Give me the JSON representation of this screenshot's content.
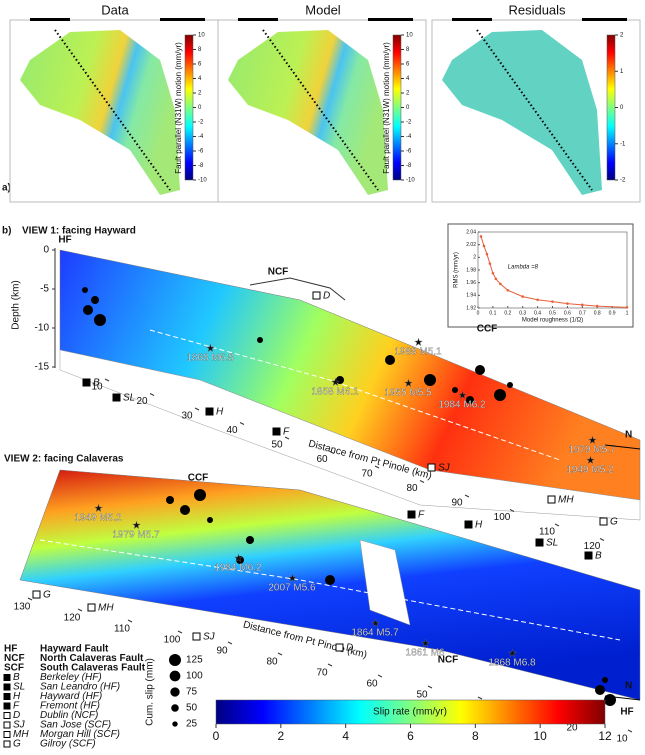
{
  "panel_a": {
    "label": "a)",
    "titles": [
      "Data",
      "Model",
      "Residuals"
    ],
    "colorbar_label": "Fault parallel (N31W) motion (mm/yr)",
    "colorbar_ticks": [
      10,
      8,
      6,
      4,
      2,
      0,
      -2,
      -4,
      -6,
      -8,
      -10
    ],
    "residual_ticks": [
      2,
      1,
      0,
      -1,
      -2
    ]
  },
  "panel_b": {
    "label": "b)",
    "view1": {
      "title": "VIEW 1: facing Hayward",
      "faults": [
        "HF",
        "NCF",
        "CCF"
      ],
      "depth_label": "Depth (km)",
      "depth_ticks": [
        0,
        -5,
        -10,
        -15
      ],
      "distance_ticks": [
        10,
        20,
        30,
        40,
        50,
        60,
        70,
        80,
        90,
        100,
        110,
        120
      ],
      "distance_label": "Distance from Pt Pinole (km)",
      "sites": [
        "B",
        "SL",
        "H",
        "F",
        "D",
        "SJ",
        "MH",
        "G"
      ],
      "earthquakes": [
        "1868 M6.8",
        "1858 M6.1",
        "1988 M5.1",
        "1955 M5.5",
        "1984 M6.2",
        "1979 M5.7",
        "1949 M5.2"
      ],
      "north": "N"
    },
    "view2": {
      "title": "VIEW 2: facing Calaveras",
      "faults": [
        "CCF",
        "NCF",
        "HF"
      ],
      "distance_ticks": [
        130,
        120,
        110,
        100,
        90,
        80,
        70,
        60,
        50,
        40,
        30,
        20,
        10
      ],
      "distance_label": "Distance from Pt Pinole (km)",
      "sites": [
        "F",
        "H",
        "SL",
        "B",
        "G",
        "MH",
        "SJ",
        "D"
      ],
      "earthquakes": [
        "1949 M5.2",
        "1979 M5.7",
        "1984 M6.2",
        "2007 M5.6",
        "1864 M5.7",
        "1861 M6",
        "1868 M6.8"
      ],
      "north": "N"
    },
    "legend": [
      {
        "abbr": "HF",
        "name": "Hayward Fault"
      },
      {
        "abbr": "NCF",
        "name": "North Calaveras Fault"
      },
      {
        "abbr": "SCF",
        "name": "South Calaveras Fault"
      },
      {
        "abbr": "B",
        "name": "Berkeley (HF)"
      },
      {
        "abbr": "SL",
        "name": "San Leandro (HF)"
      },
      {
        "abbr": "H",
        "name": "Hayward (HF)"
      },
      {
        "abbr": "F",
        "name": "Fremont (HF)"
      },
      {
        "abbr": "D",
        "name": "Dublin (NCF)"
      },
      {
        "abbr": "SJ",
        "name": "San Jose (SCF)"
      },
      {
        "abbr": "MH",
        "name": "Morgan Hill (SCF)"
      },
      {
        "abbr": "G",
        "name": "Gilroy (SCF)"
      }
    ],
    "slip_legend": {
      "title": "Cum. slip (mm)",
      "sizes": [
        125,
        100,
        75,
        50,
        25
      ]
    },
    "slip_colorbar": {
      "label": "Slip rate (mm/yr)",
      "ticks": [
        0,
        2,
        4,
        6,
        8,
        10,
        12
      ]
    }
  },
  "chart_data": {
    "type": "line",
    "x_label": "Model roughness (1/Ω)",
    "y_label": "RMS (mm/yr)",
    "annotation": "Lambda =8",
    "color": "#e8603c",
    "x": [
      0.02,
      0.04,
      0.06,
      0.08,
      0.1,
      0.12,
      0.15,
      0.2,
      0.3,
      0.4,
      0.5,
      0.6,
      0.7,
      0.8,
      1
    ],
    "values": [
      2.033,
      2.018,
      2.005,
      1.99,
      1.975,
      1.966,
      1.958,
      1.948,
      1.938,
      1.933,
      1.93,
      1.927,
      1.925,
      1.923,
      1.921
    ],
    "xlim": [
      0,
      1
    ],
    "ylim": [
      1.92,
      2.04
    ],
    "xticks": [
      0,
      0.1,
      0.2,
      0.3,
      0.4,
      0.5,
      0.6,
      0.7,
      0.8,
      0.9,
      1
    ],
    "yticks": [
      1.92,
      1.94,
      1.96,
      1.98,
      2,
      2.02,
      2.04
    ]
  }
}
